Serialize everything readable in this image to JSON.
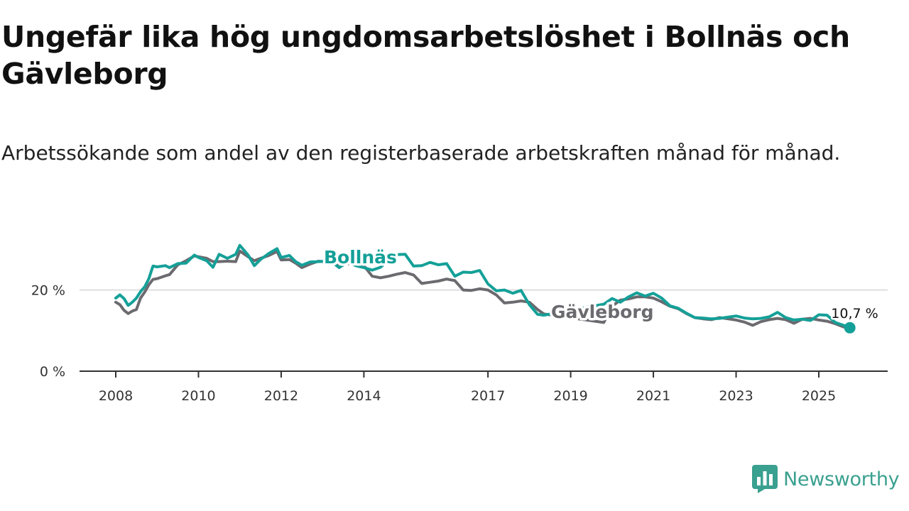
{
  "title": "Ungefär lika hög ungdomsarbetslöshet i Bollnäs och Gävleborg",
  "subtitle": "Arbetssökande som andel av den registerbaserade arbetskraften månad för månad.",
  "brand": {
    "name": "Newsworthy",
    "color": "#3aa08f",
    "icon": "bar-chart-logo-icon"
  },
  "chart_data": {
    "type": "line",
    "title": "Ungefär lika hög ungdomsarbetslöshet i Bollnäs och Gävleborg",
    "xlabel": "",
    "ylabel": "",
    "xlim": [
      2007.9,
      2026.1
    ],
    "ylim": [
      0,
      30
    ],
    "x_ticks": [
      {
        "value": 2008,
        "label": "2008"
      },
      {
        "value": 2010,
        "label": "2010"
      },
      {
        "value": 2012,
        "label": "2012"
      },
      {
        "value": 2014,
        "label": "2014"
      },
      {
        "value": 2017,
        "label": "2017"
      },
      {
        "value": 2019,
        "label": "2019"
      },
      {
        "value": 2021,
        "label": "2021"
      },
      {
        "value": 2023,
        "label": "2023"
      },
      {
        "value": 2025,
        "label": "2025"
      }
    ],
    "y_ticks": [
      {
        "value": 0,
        "label": "0 %"
      },
      {
        "value": 20,
        "label": "20 %"
      }
    ],
    "gridlines": [
      20
    ],
    "end_label": "10,7 %",
    "series": [
      {
        "name": "Bollnäs",
        "label": "Bollnäs",
        "color": "#14a098",
        "x": [
          2008.0,
          2008.1,
          2008.2,
          2008.3,
          2008.4,
          2008.5,
          2008.6,
          2008.7,
          2008.8,
          2008.9,
          2009.0,
          2009.2,
          2009.3,
          2009.5,
          2009.7,
          2009.9,
          2010.0,
          2010.2,
          2010.35,
          2010.5,
          2010.7,
          2010.9,
          2011.0,
          2011.2,
          2011.35,
          2011.5,
          2011.7,
          2011.9,
          2012.0,
          2012.2,
          2012.35,
          2012.5,
          2012.7,
          2012.9,
          2013.2,
          2013.4,
          2013.6,
          2013.8,
          2014.0,
          2014.2,
          2014.4,
          2014.6,
          2014.8,
          2015.0,
          2015.2,
          2015.4,
          2015.6,
          2015.8,
          2016.0,
          2016.2,
          2016.4,
          2016.6,
          2016.8,
          2017.0,
          2017.2,
          2017.4,
          2017.6,
          2017.8,
          2018.0,
          2018.2,
          2018.35,
          2019.8,
          2020.0,
          2020.2,
          2020.4,
          2020.6,
          2020.8,
          2021.0,
          2021.2,
          2021.4,
          2021.6,
          2021.8,
          2022.0,
          2022.2,
          2022.4,
          2022.6,
          2022.8,
          2023.0,
          2023.2,
          2023.4,
          2023.6,
          2023.8,
          2024.0,
          2024.2,
          2024.4,
          2024.6,
          2024.8,
          2025.0,
          2025.2,
          2025.4,
          2025.6,
          2025.75
        ],
        "y": [
          18.0,
          18.8,
          17.9,
          16.2,
          17.0,
          18.0,
          19.6,
          20.8,
          22.8,
          25.9,
          25.7,
          26.0,
          25.5,
          26.5,
          26.6,
          28.6,
          28.0,
          27.2,
          25.6,
          28.8,
          27.8,
          28.8,
          31.0,
          28.6,
          26.0,
          27.5,
          29.0,
          30.2,
          28.0,
          28.5,
          27.0,
          26.1,
          26.9,
          27.0,
          27.2,
          25.5,
          26.8,
          26.0,
          25.5,
          24.9,
          25.6,
          27.4,
          28.7,
          28.8,
          25.9,
          26.0,
          26.8,
          26.2,
          26.5,
          23.4,
          24.4,
          24.3,
          24.8,
          21.5,
          19.8,
          20.0,
          19.2,
          19.9,
          16.4,
          14.0,
          13.8,
          16.5,
          17.9,
          17.0,
          18.3,
          19.3,
          18.5,
          19.2,
          18.0,
          16.1,
          15.5,
          14.3,
          13.2,
          13.1,
          12.9,
          13.0,
          13.3,
          13.6,
          13.1,
          12.9,
          13.0,
          13.4,
          14.5,
          13.2,
          12.6,
          12.8,
          12.5,
          13.9,
          13.8,
          12.0,
          11.3,
          10.7
        ]
      },
      {
        "name": "Gävleborg",
        "label": "Gävleborg",
        "color": "#6b6a6f",
        "x": [
          2008.0,
          2008.1,
          2008.2,
          2008.3,
          2008.4,
          2008.5,
          2008.6,
          2008.7,
          2008.8,
          2008.9,
          2009.0,
          2009.2,
          2009.3,
          2009.5,
          2009.7,
          2009.9,
          2010.0,
          2010.2,
          2010.35,
          2010.5,
          2010.7,
          2010.9,
          2011.0,
          2011.2,
          2011.35,
          2011.5,
          2011.7,
          2011.9,
          2012.0,
          2012.2,
          2012.35,
          2012.5,
          2012.7,
          2012.9,
          2013.2,
          2013.4,
          2013.6,
          2013.8,
          2014.0,
          2014.2,
          2014.4,
          2014.6,
          2014.8,
          2015.0,
          2015.2,
          2015.4,
          2015.6,
          2015.8,
          2016.0,
          2016.2,
          2016.4,
          2016.6,
          2016.8,
          2017.0,
          2017.2,
          2017.4,
          2017.6,
          2017.8,
          2018.0,
          2018.2,
          2018.35,
          2019.8,
          2020.0,
          2020.2,
          2020.4,
          2020.6,
          2020.8,
          2021.0,
          2021.2,
          2021.4,
          2021.6,
          2021.8,
          2022.0,
          2022.2,
          2022.4,
          2022.6,
          2022.8,
          2023.0,
          2023.2,
          2023.4,
          2023.6,
          2023.8,
          2024.0,
          2024.2,
          2024.4,
          2024.6,
          2024.8,
          2025.0,
          2025.2,
          2025.4,
          2025.6,
          2025.75
        ],
        "y": [
          17.0,
          16.4,
          15.0,
          14.2,
          14.8,
          15.2,
          18.0,
          19.5,
          21.3,
          22.6,
          22.8,
          23.5,
          23.8,
          26.2,
          27.2,
          28.4,
          28.2,
          27.8,
          27.0,
          27.0,
          27.1,
          27.0,
          29.6,
          28.2,
          27.2,
          27.8,
          28.5,
          29.5,
          27.4,
          27.5,
          26.6,
          25.5,
          26.4,
          27.1,
          26.8,
          26.4,
          26.5,
          26.3,
          26.0,
          23.4,
          23.0,
          23.4,
          23.9,
          24.3,
          23.7,
          21.6,
          21.9,
          22.2,
          22.7,
          22.3,
          20.0,
          19.9,
          20.3,
          20.0,
          18.8,
          16.8,
          17.0,
          17.3,
          17.0,
          15.2,
          14.1,
          12.0,
          16.0,
          17.5,
          17.8,
          18.3,
          18.3,
          18.0,
          17.1,
          16.0,
          15.4,
          14.2,
          13.2,
          12.9,
          12.7,
          13.2,
          12.9,
          12.6,
          12.1,
          11.3,
          12.2,
          12.7,
          13.0,
          12.7,
          11.8,
          12.8,
          13.0,
          12.6,
          12.3,
          11.7,
          10.9,
          11.0
        ]
      }
    ]
  }
}
